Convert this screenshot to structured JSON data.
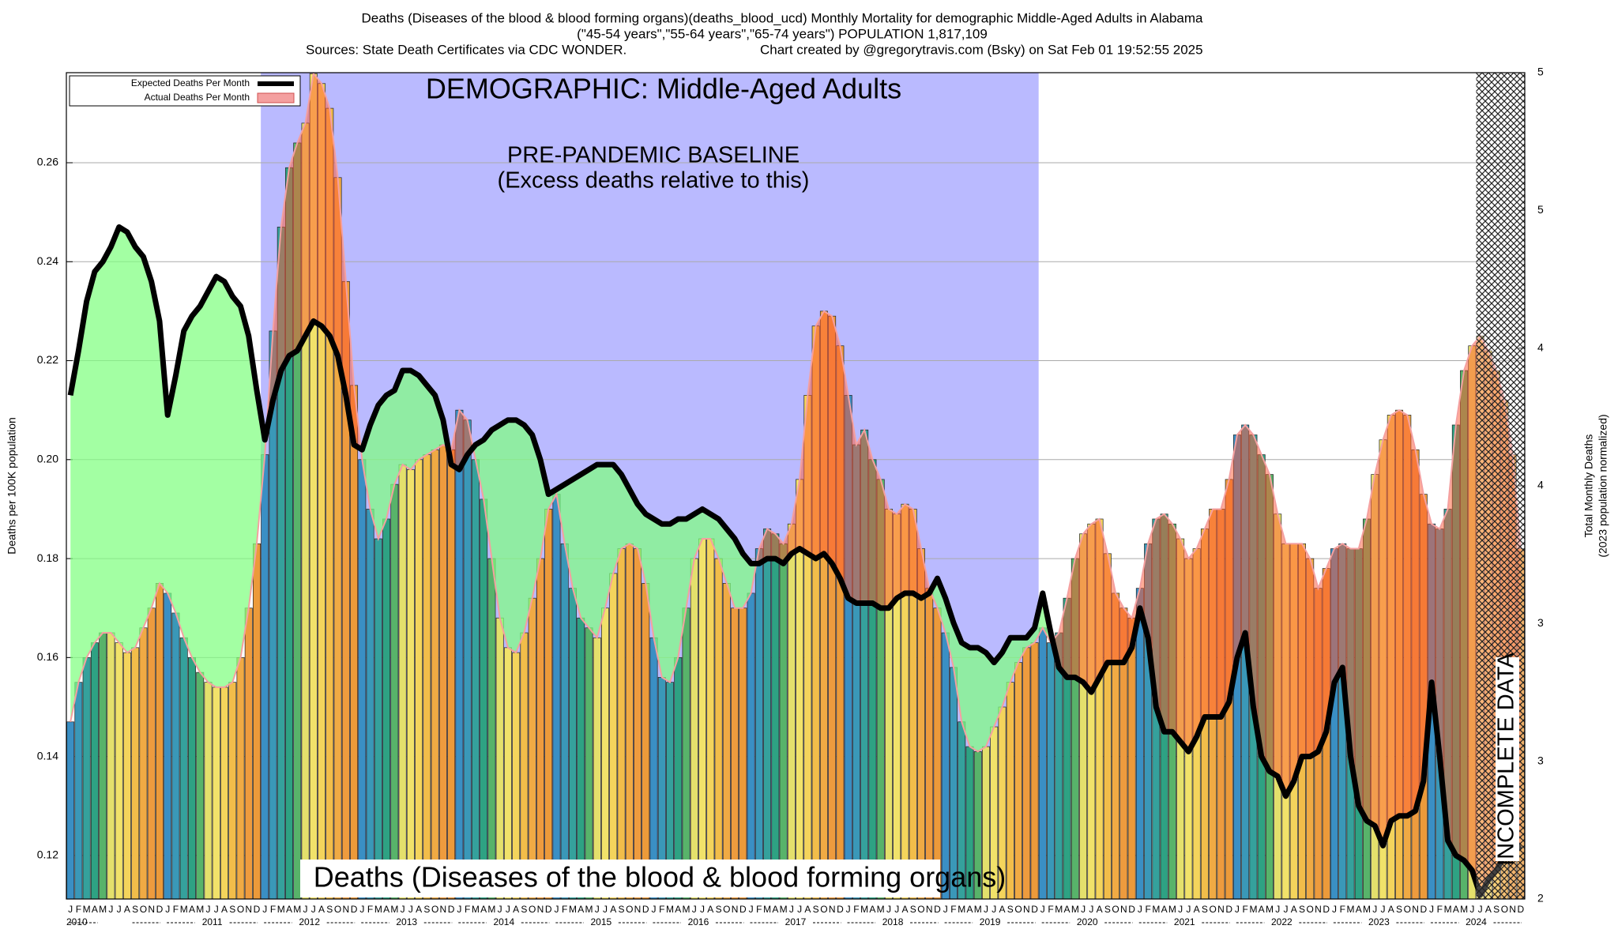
{
  "chart_data": {
    "type": "bar",
    "title": "Deaths (Diseases of the blood & blood forming organs)(deaths_blood_ucd) Monthly Mortality for demographic Middle-Aged Adults in Alabama",
    "subtitle": "(\"45-54 years\",\"55-64 years\",\"65-74 years\") POPULATION 1,817,109",
    "sources": "Sources: State Death Certificates via CDC WONDER.",
    "credit": "Chart created by @gregorytravis.com (Bsky) on Sat Feb 01 19:52:55 2025",
    "annotations": {
      "demographic": "DEMOGRAPHIC: Middle-Aged Adults",
      "baseline": "PRE-PANDEMIC BASELINE",
      "baseline_note": "(Excess deaths relative to this)",
      "cause": "Deaths (Diseases of the blood & blood forming organs)",
      "incomplete": "INCOMPLETE DATA"
    },
    "ylabel": "Deaths per 100K population",
    "y2label": [
      "Total Monthly Deaths",
      "(2023 population normalized)"
    ],
    "month_labels": [
      "J",
      "F",
      "M",
      "A",
      "M",
      "J",
      "J",
      "A",
      "S",
      "O",
      "N",
      "D"
    ],
    "month_colors": [
      "#3a8fc4",
      "#3a98b8",
      "#35a19c",
      "#2ea283",
      "#58b36a",
      "#e4e06c",
      "#f1e26a",
      "#f4d45c",
      "#f2bd4a",
      "#f0aa44",
      "#ee9b3e",
      "#ec9a3a"
    ],
    "year_labels": [
      "2010",
      "2011",
      "2012",
      "2013",
      "2014",
      "2015",
      "2016",
      "2017",
      "2018",
      "2019",
      "2020",
      "2021",
      "2022",
      "2023",
      "2024"
    ],
    "ylim": [
      0.1112,
      0.2782
    ],
    "yticks": [
      0.12,
      0.14,
      0.16,
      0.18,
      {
        "value": 0.2,
        "label": "0.20"
      },
      0.22,
      0.24,
      0.26
    ],
    "y2lim": [
      2,
      5
    ],
    "y2ticks": [
      2,
      {
        "value": 2.5,
        "label": "3"
      },
      3,
      {
        "value": 3.5,
        "label": "4"
      },
      4,
      {
        "value": 4.5,
        "label": "5"
      },
      5
    ],
    "grid": true,
    "legend": "upper left",
    "series": [
      {
        "name": "Expected Deaths Per Month",
        "color": "#000000",
        "values": [
          0.213,
          0.222,
          0.232,
          0.238,
          0.24,
          0.243,
          0.247,
          0.246,
          0.243,
          0.241,
          0.236,
          0.228,
          0.209,
          0.217,
          0.226,
          0.229,
          0.231,
          0.234,
          0.237,
          0.236,
          0.233,
          0.231,
          0.225,
          0.214,
          0.204,
          0.212,
          0.218,
          0.221,
          0.222,
          0.225,
          0.228,
          0.227,
          0.225,
          0.221,
          0.213,
          0.203,
          0.202,
          0.207,
          0.211,
          0.213,
          0.214,
          0.218,
          0.218,
          0.217,
          0.215,
          0.213,
          0.208,
          0.199,
          0.198,
          0.201,
          0.203,
          0.204,
          0.206,
          0.207,
          0.208,
          0.208,
          0.207,
          0.205,
          0.2,
          0.193,
          0.194,
          0.195,
          0.196,
          0.197,
          0.198,
          0.199,
          0.199,
          0.199,
          0.197,
          0.194,
          0.191,
          0.189,
          0.188,
          0.187,
          0.187,
          0.188,
          0.188,
          0.189,
          0.19,
          0.189,
          0.188,
          0.186,
          0.184,
          0.181,
          0.179,
          0.179,
          0.18,
          0.18,
          0.179,
          0.181,
          0.182,
          0.181,
          0.18,
          0.181,
          0.179,
          0.176,
          0.172,
          0.171,
          0.171,
          0.171,
          0.17,
          0.17,
          0.172,
          0.173,
          0.173,
          0.172,
          0.173,
          0.176,
          0.172,
          0.167,
          0.163,
          0.162,
          0.162,
          0.161,
          0.159,
          0.161,
          0.164,
          0.164,
          0.164,
          0.166,
          0.173,
          0.165,
          0.158,
          0.156,
          0.156,
          0.155,
          0.153,
          0.156,
          0.159,
          0.159,
          0.159,
          0.162,
          0.17,
          0.164,
          0.15,
          0.145,
          0.145,
          0.143,
          0.141,
          0.144,
          0.148,
          0.148,
          0.148,
          0.151,
          0.16,
          0.165,
          0.15,
          0.14,
          0.137,
          0.136,
          0.132,
          0.135,
          0.14,
          0.14,
          0.141,
          0.145,
          0.155,
          0.158,
          0.14,
          0.13,
          0.127,
          0.126,
          0.122,
          0.127,
          0.128,
          0.128,
          0.129,
          0.135,
          0.155,
          0.14,
          0.123,
          0.12,
          0.119,
          0.117,
          0.112,
          0.115,
          0.117,
          0.12,
          0.121,
          0.122
        ]
      },
      {
        "name": "Actual Deaths Per Month",
        "color": "#f4a0a0",
        "values": [
          0.147,
          0.155,
          0.16,
          0.163,
          0.165,
          0.165,
          0.163,
          0.161,
          0.162,
          0.166,
          0.17,
          0.175,
          0.173,
          0.169,
          0.164,
          0.16,
          0.157,
          0.155,
          0.154,
          0.154,
          0.155,
          0.16,
          0.17,
          0.183,
          0.201,
          0.226,
          0.247,
          0.259,
          0.264,
          0.268,
          0.278,
          0.276,
          0.271,
          0.257,
          0.236,
          0.215,
          0.2,
          0.19,
          0.184,
          0.188,
          0.195,
          0.199,
          0.198,
          0.2,
          0.201,
          0.202,
          0.203,
          0.202,
          0.21,
          0.208,
          0.2,
          0.192,
          0.18,
          0.168,
          0.162,
          0.161,
          0.165,
          0.172,
          0.18,
          0.19,
          0.193,
          0.183,
          0.174,
          0.168,
          0.166,
          0.164,
          0.17,
          0.177,
          0.182,
          0.183,
          0.182,
          0.175,
          0.164,
          0.156,
          0.155,
          0.16,
          0.17,
          0.18,
          0.184,
          0.184,
          0.18,
          0.175,
          0.17,
          0.17,
          0.173,
          0.182,
          0.186,
          0.185,
          0.183,
          0.187,
          0.196,
          0.213,
          0.227,
          0.23,
          0.229,
          0.223,
          0.213,
          0.203,
          0.206,
          0.2,
          0.196,
          0.19,
          0.189,
          0.191,
          0.19,
          0.182,
          0.174,
          0.17,
          0.165,
          0.158,
          0.147,
          0.142,
          0.141,
          0.142,
          0.146,
          0.15,
          0.155,
          0.159,
          0.162,
          0.163,
          0.166,
          0.163,
          0.165,
          0.172,
          0.18,
          0.185,
          0.187,
          0.188,
          0.181,
          0.173,
          0.17,
          0.168,
          0.174,
          0.183,
          0.188,
          0.189,
          0.187,
          0.184,
          0.18,
          0.182,
          0.186,
          0.19,
          0.19,
          0.196,
          0.205,
          0.207,
          0.205,
          0.201,
          0.197,
          0.189,
          0.183,
          0.183,
          0.183,
          0.18,
          0.174,
          0.178,
          0.182,
          0.183,
          0.182,
          0.182,
          0.188,
          0.197,
          0.204,
          0.209,
          0.21,
          0.209,
          0.202,
          0.193,
          0.187,
          0.186,
          0.19,
          0.207,
          0.218,
          0.223,
          0.225,
          0.222,
          0.218,
          0.212,
          0.201,
          0.182
        ]
      }
    ]
  }
}
